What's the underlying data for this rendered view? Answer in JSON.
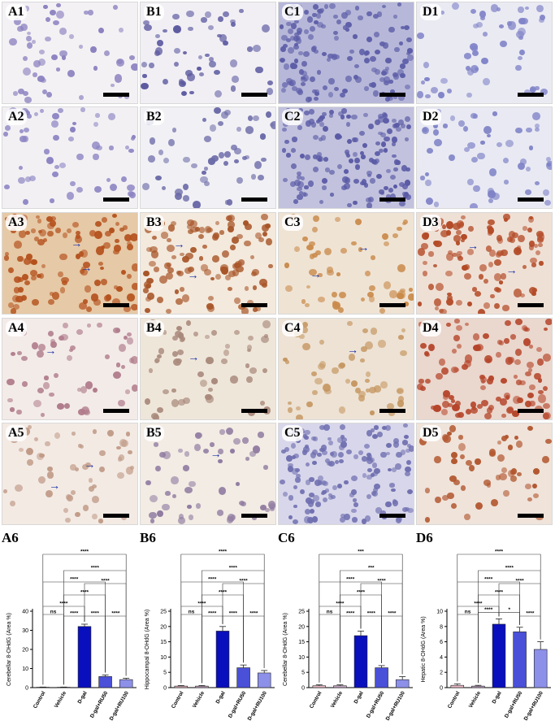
{
  "panels": [
    {
      "id": "A1",
      "label": "A1",
      "bg": "#f4f1f4",
      "cell": "#8a80bf",
      "stain": "hematoxylin",
      "arrows": 0
    },
    {
      "id": "B1",
      "label": "B1",
      "bg": "#f1eff4",
      "cell": "#5c5aa0",
      "stain": "hematoxylin",
      "arrows": 0
    },
    {
      "id": "C1",
      "label": "C1",
      "bg": "#b7b7d9",
      "cell": "#5d5ea8",
      "stain": "hematoxylin-dense",
      "arrows": 0
    },
    {
      "id": "D1",
      "label": "D1",
      "bg": "#eaeaf3",
      "cell": "#8184c8",
      "stain": "hematoxylin",
      "arrows": 0
    },
    {
      "id": "A2",
      "label": "A2",
      "bg": "#f3f0f4",
      "cell": "#8a83c2",
      "stain": "hematoxylin",
      "arrows": 0
    },
    {
      "id": "B2",
      "label": "B2",
      "bg": "#f1f0f4",
      "cell": "#6b6aa8",
      "stain": "hematoxylin",
      "arrows": 0
    },
    {
      "id": "C2",
      "label": "C2",
      "bg": "#c2c2de",
      "cell": "#5a5aa6",
      "stain": "hematoxylin-dense",
      "arrows": 0
    },
    {
      "id": "D2",
      "label": "D2",
      "bg": "#e9e9f3",
      "cell": "#7e82c6",
      "stain": "hematoxylin",
      "arrows": 0
    },
    {
      "id": "A3",
      "label": "A3",
      "bg": "#e6c9a6",
      "cell": "#b4511d",
      "stain": "dab-strong",
      "arrows": 2
    },
    {
      "id": "B3",
      "label": "B3",
      "bg": "#f3e9dc",
      "cell": "#a85528",
      "stain": "dab-strong",
      "arrows": 2
    },
    {
      "id": "C3",
      "label": "C3",
      "bg": "#efe3d4",
      "cell": "#c98a4a",
      "stain": "dab",
      "arrows": 2
    },
    {
      "id": "D3",
      "label": "D3",
      "bg": "#efe0d5",
      "cell": "#b34a26",
      "stain": "dab-strong",
      "arrows": 2
    },
    {
      "id": "A4",
      "label": "A4",
      "bg": "#f3ebe8",
      "cell": "#b07c8c",
      "stain": "dab-weak",
      "arrows": 1
    },
    {
      "id": "B4",
      "label": "B4",
      "bg": "#efe6da",
      "cell": "#a98a7c",
      "stain": "dab-weak",
      "arrows": 1
    },
    {
      "id": "C4",
      "label": "C4",
      "bg": "#ede2d4",
      "cell": "#c59660",
      "stain": "dab",
      "arrows": 1
    },
    {
      "id": "D4",
      "label": "D4",
      "bg": "#ead7cd",
      "cell": "#b5452a",
      "stain": "dab-strong",
      "arrows": 0
    },
    {
      "id": "A5",
      "label": "A5",
      "bg": "#f3eae4",
      "cell": "#c09a86",
      "stain": "dab-weak",
      "arrows": 2
    },
    {
      "id": "B5",
      "label": "B5",
      "bg": "#f2ece4",
      "cell": "#8f7aa0",
      "stain": "dab-weak",
      "arrows": 1
    },
    {
      "id": "C5",
      "label": "C5",
      "bg": "#d8d6ea",
      "cell": "#6f6fb0",
      "stain": "hematoxylin-dense",
      "arrows": 0
    },
    {
      "id": "D5",
      "label": "D5",
      "bg": "#efe3da",
      "cell": "#b2572f",
      "stain": "dab",
      "arrows": 0
    }
  ],
  "chart_data": [
    {
      "type": "bar",
      "panel": "A6",
      "title": "A6",
      "ylabel": "Cerebellar 8-OHdG (Area %)",
      "categories": [
        "Control",
        "Vehicle",
        "D-gal",
        "D-gal+RU50",
        "D-gal+RU100"
      ],
      "values": [
        0.2,
        0.2,
        32,
        5.8,
        4.2
      ],
      "errors": [
        0.1,
        0.1,
        1.2,
        0.8,
        0.7
      ],
      "ylim": [
        0,
        40
      ],
      "yticks": [
        0,
        10,
        20,
        30,
        40
      ],
      "colors": [
        "#e8b8c6",
        "#c6a6c6",
        "#0a0fbd",
        "#4a50d8",
        "#8c90e8"
      ],
      "comparisons": [
        {
          "from": 0,
          "to": 1,
          "text": "ns"
        },
        {
          "from": 1,
          "to": 2,
          "text": "****"
        },
        {
          "from": 2,
          "to": 3,
          "text": "****"
        },
        {
          "from": 3,
          "to": 4,
          "text": "****"
        },
        {
          "from": 0,
          "to": 2,
          "text": "****"
        },
        {
          "from": 1,
          "to": 3,
          "text": "****"
        },
        {
          "from": 2,
          "to": 4,
          "text": "****"
        },
        {
          "from": 0,
          "to": 3,
          "text": "****"
        },
        {
          "from": 1,
          "to": 4,
          "text": "****"
        },
        {
          "from": 0,
          "to": 4,
          "text": "****"
        }
      ]
    },
    {
      "type": "bar",
      "panel": "B6",
      "title": "B6",
      "ylabel": "Hippocampal 8-OHdG (Area %)",
      "categories": [
        "Control",
        "Vehicle",
        "D-gal",
        "D-gal+RU50",
        "D-gal+RU100"
      ],
      "values": [
        0.5,
        0.5,
        18.5,
        6.5,
        4.8
      ],
      "errors": [
        0.2,
        0.2,
        1.5,
        0.9,
        0.8
      ],
      "ylim": [
        0,
        25
      ],
      "yticks": [
        0,
        5,
        10,
        15,
        20,
        25
      ],
      "colors": [
        "#e8b8c6",
        "#c6a6c6",
        "#0a0fbd",
        "#4a50d8",
        "#8c90e8"
      ],
      "comparisons": [
        {
          "from": 0,
          "to": 1,
          "text": "ns"
        },
        {
          "from": 1,
          "to": 2,
          "text": "****"
        },
        {
          "from": 2,
          "to": 3,
          "text": "****"
        },
        {
          "from": 3,
          "to": 4,
          "text": "****"
        },
        {
          "from": 0,
          "to": 2,
          "text": "****"
        },
        {
          "from": 1,
          "to": 3,
          "text": "****"
        },
        {
          "from": 2,
          "to": 4,
          "text": "****"
        },
        {
          "from": 0,
          "to": 3,
          "text": "****"
        },
        {
          "from": 1,
          "to": 4,
          "text": "****"
        },
        {
          "from": 0,
          "to": 4,
          "text": "****"
        }
      ]
    },
    {
      "type": "bar",
      "panel": "C6",
      "title": "C6",
      "ylabel": "Cerebellar 8-OHdG (Area %)",
      "categories": [
        "Control",
        "Vehicle",
        "D-gal",
        "D-gal+RU50",
        "D-gal+RU100"
      ],
      "values": [
        0.6,
        0.6,
        17,
        6.5,
        2.6
      ],
      "errors": [
        0.3,
        0.3,
        1.5,
        0.7,
        1.0
      ],
      "ylim": [
        0,
        25
      ],
      "yticks": [
        0,
        5,
        10,
        15,
        20,
        25
      ],
      "colors": [
        "#e8b8c6",
        "#c6a6c6",
        "#0a0fbd",
        "#4a50d8",
        "#8c90e8"
      ],
      "comparisons": [
        {
          "from": 0,
          "to": 1,
          "text": "ns"
        },
        {
          "from": 1,
          "to": 2,
          "text": "****"
        },
        {
          "from": 2,
          "to": 3,
          "text": "****"
        },
        {
          "from": 3,
          "to": 4,
          "text": "****"
        },
        {
          "from": 0,
          "to": 2,
          "text": "****"
        },
        {
          "from": 1,
          "to": 3,
          "text": "****"
        },
        {
          "from": 2,
          "to": 4,
          "text": "****"
        },
        {
          "from": 0,
          "to": 3,
          "text": "****"
        },
        {
          "from": 1,
          "to": 4,
          "text": "***"
        },
        {
          "from": 0,
          "to": 4,
          "text": "***"
        }
      ]
    },
    {
      "type": "bar",
      "panel": "D6",
      "title": "D6",
      "ylabel": "Hepatic 8-OHdG (Area %)",
      "categories": [
        "Control",
        "Vehicle",
        "D-gal",
        "D-gal+RU50",
        "D-gal+RU100"
      ],
      "values": [
        0.3,
        0.2,
        8.3,
        7.3,
        5.0
      ],
      "errors": [
        0.2,
        0.1,
        0.7,
        0.6,
        1.0
      ],
      "ylim": [
        0,
        10
      ],
      "yticks": [
        0,
        2,
        4,
        6,
        8,
        10
      ],
      "colors": [
        "#e8b8c6",
        "#c6a6c6",
        "#0a0fbd",
        "#4a50d8",
        "#8c90e8"
      ],
      "comparisons": [
        {
          "from": 0,
          "to": 1,
          "text": "ns"
        },
        {
          "from": 1,
          "to": 2,
          "text": "****"
        },
        {
          "from": 2,
          "to": 3,
          "text": "*"
        },
        {
          "from": 3,
          "to": 4,
          "text": "****"
        },
        {
          "from": 0,
          "to": 2,
          "text": "****"
        },
        {
          "from": 1,
          "to": 3,
          "text": "****"
        },
        {
          "from": 2,
          "to": 4,
          "text": "****"
        },
        {
          "from": 0,
          "to": 3,
          "text": "****"
        },
        {
          "from": 1,
          "to": 4,
          "text": "****"
        },
        {
          "from": 0,
          "to": 4,
          "text": "****"
        }
      ]
    }
  ]
}
